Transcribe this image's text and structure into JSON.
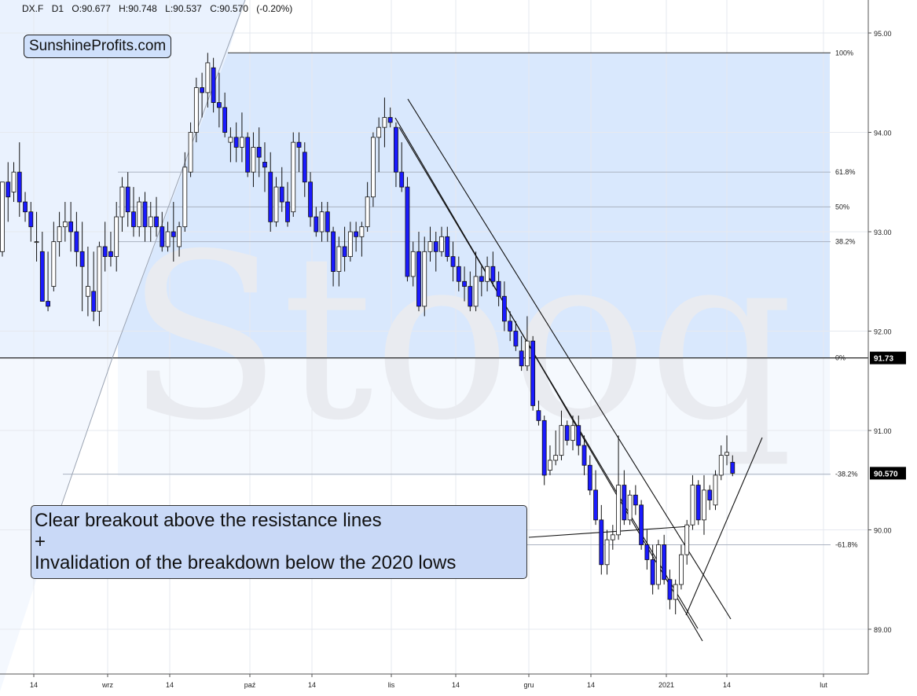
{
  "header": {
    "symbol": "DX.F",
    "interval": "D1",
    "open": "O:90.677",
    "high": "H:90.748",
    "low": "L:90.537",
    "close": "C:90.570",
    "change": "(-0.20%)"
  },
  "brand": "SunshineProfits.com",
  "watermark": "Stooq",
  "annotation": {
    "line1": "Clear breakout above the resistance lines",
    "line2": "+",
    "line3": "Invalidation of the breakdown below the 2020 lows"
  },
  "colors": {
    "up": "#ffffff",
    "down": "#1a1aff",
    "fib_zone": "#d9e8fd",
    "annotation_bg": "#c9d9f7"
  },
  "chart_data": {
    "type": "candlestick",
    "ylim": [
      88.6,
      95.3
    ],
    "y_ticks": [
      "95.00",
      "94.00",
      "93.00",
      "92.00",
      "91.00",
      "90.00",
      "89.00"
    ],
    "x_ticks": [
      "14",
      "wrz",
      "14",
      "paź",
      "14",
      "lis",
      "14",
      "gru",
      "14",
      "2021",
      "14",
      "lut"
    ],
    "price_labels": [
      {
        "text": "91.73",
        "value": 91.73
      },
      {
        "text": "90.570",
        "value": 90.57
      }
    ],
    "fib_levels": [
      {
        "label": "100%",
        "value": 94.8
      },
      {
        "label": "61.8%",
        "value": 93.6
      },
      {
        "label": "50%",
        "value": 93.25
      },
      {
        "label": "38.2%",
        "value": 92.9
      },
      {
        "label": "0%",
        "value": 91.73
      },
      {
        "label": "-38.2%",
        "value": 90.56
      },
      {
        "label": "-61.8%",
        "value": 89.85
      }
    ],
    "candles": [
      [
        92.8,
        93.5,
        92.75,
        93.5
      ],
      [
        93.5,
        93.7,
        93.1,
        93.35
      ],
      [
        93.4,
        93.7,
        93.3,
        93.6
      ],
      [
        93.6,
        93.9,
        93.15,
        93.3
      ],
      [
        93.3,
        93.4,
        93.1,
        93.2
      ],
      [
        93.2,
        93.3,
        92.9,
        93.05
      ],
      [
        92.9,
        93.2,
        92.7,
        92.9
      ],
      [
        92.8,
        93.0,
        92.3,
        92.3
      ],
      [
        92.3,
        92.8,
        92.2,
        92.25
      ],
      [
        92.45,
        93.1,
        92.4,
        92.9
      ],
      [
        92.9,
        93.2,
        92.75,
        93.05
      ],
      [
        93.05,
        93.3,
        92.9,
        93.1
      ],
      [
        93.1,
        93.3,
        92.8,
        93.0
      ],
      [
        93.0,
        93.2,
        92.65,
        92.8
      ],
      [
        92.8,
        93.1,
        92.2,
        92.65
      ],
      [
        92.35,
        92.85,
        92.15,
        92.45
      ],
      [
        92.4,
        92.8,
        92.1,
        92.2
      ],
      [
        92.2,
        92.9,
        92.05,
        92.85
      ],
      [
        92.85,
        93.1,
        92.6,
        92.75
      ],
      [
        92.8,
        93.0,
        92.65,
        92.75
      ],
      [
        92.75,
        93.3,
        92.6,
        93.15
      ],
      [
        93.15,
        93.55,
        93.0,
        93.45
      ],
      [
        93.45,
        93.6,
        93.05,
        93.2
      ],
      [
        93.2,
        93.45,
        92.95,
        93.05
      ],
      [
        93.05,
        93.35,
        92.95,
        93.3
      ],
      [
        93.3,
        93.4,
        92.9,
        93.05
      ],
      [
        93.05,
        93.3,
        92.9,
        93.15
      ],
      [
        93.15,
        93.35,
        92.95,
        93.05
      ],
      [
        93.05,
        93.2,
        92.8,
        92.85
      ],
      [
        92.85,
        93.1,
        92.8,
        93.0
      ],
      [
        93.0,
        93.3,
        92.7,
        92.95
      ],
      [
        92.85,
        93.1,
        92.75,
        93.05
      ],
      [
        93.05,
        93.8,
        93.0,
        93.65
      ],
      [
        93.6,
        94.1,
        93.55,
        94.0
      ],
      [
        94.0,
        94.55,
        93.9,
        94.45
      ],
      [
        94.45,
        94.6,
        94.15,
        94.4
      ],
      [
        94.4,
        94.8,
        94.25,
        94.7
      ],
      [
        94.65,
        94.75,
        94.2,
        94.3
      ],
      [
        94.3,
        94.6,
        94.05,
        94.25
      ],
      [
        94.25,
        94.4,
        93.95,
        94.0
      ],
      [
        93.9,
        94.05,
        93.7,
        93.95
      ],
      [
        93.95,
        94.1,
        93.7,
        93.85
      ],
      [
        93.85,
        94.2,
        93.7,
        93.95
      ],
      [
        93.95,
        94.0,
        93.55,
        93.6
      ],
      [
        93.6,
        94.0,
        93.45,
        93.85
      ],
      [
        93.85,
        94.05,
        93.55,
        93.75
      ],
      [
        93.7,
        93.9,
        93.4,
        93.65
      ],
      [
        93.6,
        93.8,
        93.0,
        93.1
      ],
      [
        93.1,
        93.55,
        93.05,
        93.45
      ],
      [
        93.45,
        93.65,
        93.2,
        93.3
      ],
      [
        93.3,
        93.5,
        93.05,
        93.1
      ],
      [
        93.2,
        94.0,
        93.15,
        93.9
      ],
      [
        93.9,
        94.0,
        93.6,
        93.85
      ],
      [
        93.8,
        93.9,
        93.35,
        93.5
      ],
      [
        93.5,
        93.6,
        93.05,
        93.15
      ],
      [
        93.15,
        93.25,
        92.95,
        93.0
      ],
      [
        93.0,
        93.3,
        92.9,
        93.2
      ],
      [
        93.2,
        93.3,
        92.9,
        93.0
      ],
      [
        93.0,
        93.05,
        92.45,
        92.6
      ],
      [
        92.6,
        92.95,
        92.45,
        92.85
      ],
      [
        92.85,
        93.05,
        92.6,
        92.75
      ],
      [
        92.75,
        93.1,
        92.7,
        93.0
      ],
      [
        93.0,
        93.1,
        92.8,
        92.95
      ],
      [
        92.95,
        93.1,
        92.75,
        93.05
      ],
      [
        93.05,
        93.5,
        93.0,
        93.35
      ],
      [
        93.35,
        94.0,
        93.25,
        93.95
      ],
      [
        93.95,
        94.15,
        93.6,
        94.05
      ],
      [
        94.05,
        94.35,
        93.85,
        94.15
      ],
      [
        94.15,
        94.25,
        94.05,
        94.1
      ],
      [
        94.05,
        94.1,
        93.45,
        93.6
      ],
      [
        93.6,
        93.9,
        93.4,
        93.45
      ],
      [
        93.45,
        93.55,
        92.5,
        92.55
      ],
      [
        92.55,
        92.9,
        92.45,
        92.8
      ],
      [
        92.8,
        93.0,
        92.2,
        92.25
      ],
      [
        92.25,
        92.95,
        92.15,
        92.8
      ],
      [
        92.8,
        93.05,
        92.7,
        92.9
      ],
      [
        92.9,
        93.0,
        92.6,
        92.8
      ],
      [
        92.8,
        93.05,
        92.75,
        92.95
      ],
      [
        92.95,
        93.05,
        92.7,
        92.75
      ],
      [
        92.75,
        92.9,
        92.5,
        92.65
      ],
      [
        92.65,
        92.75,
        92.4,
        92.5
      ],
      [
        92.5,
        92.65,
        92.3,
        92.45
      ],
      [
        92.45,
        92.6,
        92.2,
        92.25
      ],
      [
        92.25,
        92.8,
        92.2,
        92.55
      ],
      [
        92.55,
        92.65,
        92.35,
        92.5
      ],
      [
        92.5,
        92.75,
        92.4,
        92.65
      ],
      [
        92.65,
        92.8,
        92.45,
        92.5
      ],
      [
        92.5,
        92.6,
        92.25,
        92.35
      ],
      [
        92.35,
        92.5,
        92.0,
        92.1
      ],
      [
        92.1,
        92.2,
        91.9,
        92.0
      ],
      [
        92.0,
        92.1,
        91.8,
        91.85
      ],
      [
        91.8,
        91.95,
        91.6,
        91.65
      ],
      [
        91.65,
        92.15,
        91.6,
        91.9
      ],
      [
        91.9,
        91.95,
        91.2,
        91.25
      ],
      [
        91.2,
        91.3,
        91.05,
        91.1
      ],
      [
        91.1,
        91.15,
        90.45,
        90.55
      ],
      [
        90.6,
        90.85,
        90.55,
        90.7
      ],
      [
        90.7,
        91.0,
        90.65,
        90.75
      ],
      [
        90.75,
        91.2,
        90.7,
        91.05
      ],
      [
        91.05,
        91.1,
        90.85,
        90.9
      ],
      [
        90.9,
        91.15,
        90.8,
        91.05
      ],
      [
        91.05,
        91.15,
        90.75,
        90.85
      ],
      [
        90.85,
        90.95,
        90.55,
        90.65
      ],
      [
        90.65,
        90.75,
        90.35,
        90.4
      ],
      [
        90.4,
        90.6,
        90.05,
        90.1
      ],
      [
        90.1,
        90.25,
        89.55,
        89.65
      ],
      [
        89.65,
        90.0,
        89.55,
        89.9
      ],
      [
        89.9,
        90.05,
        89.8,
        89.95
      ],
      [
        89.95,
        90.95,
        89.9,
        90.45
      ],
      [
        90.45,
        90.6,
        90.05,
        90.1
      ],
      [
        90.1,
        90.4,
        90.05,
        90.35
      ],
      [
        90.35,
        90.45,
        90.15,
        90.25
      ],
      [
        90.25,
        90.3,
        89.8,
        89.85
      ],
      [
        89.85,
        90.0,
        89.6,
        89.7
      ],
      [
        89.7,
        89.85,
        89.35,
        89.45
      ],
      [
        89.45,
        89.9,
        89.4,
        89.85
      ],
      [
        89.85,
        89.95,
        89.45,
        89.5
      ],
      [
        89.5,
        89.6,
        89.2,
        89.3
      ],
      [
        89.3,
        89.5,
        89.15,
        89.45
      ],
      [
        89.45,
        89.85,
        89.4,
        89.75
      ],
      [
        89.75,
        90.1,
        89.65,
        90.05
      ],
      [
        90.05,
        90.55,
        90.0,
        90.45
      ],
      [
        90.45,
        90.5,
        90.05,
        90.1
      ],
      [
        90.1,
        90.55,
        89.95,
        90.4
      ],
      [
        90.4,
        90.45,
        90.2,
        90.3
      ],
      [
        90.25,
        90.6,
        90.2,
        90.55
      ],
      [
        90.55,
        90.85,
        90.5,
        90.75
      ],
      [
        90.75,
        90.95,
        90.65,
        90.78
      ],
      [
        90.68,
        90.75,
        90.54,
        90.57
      ]
    ]
  }
}
